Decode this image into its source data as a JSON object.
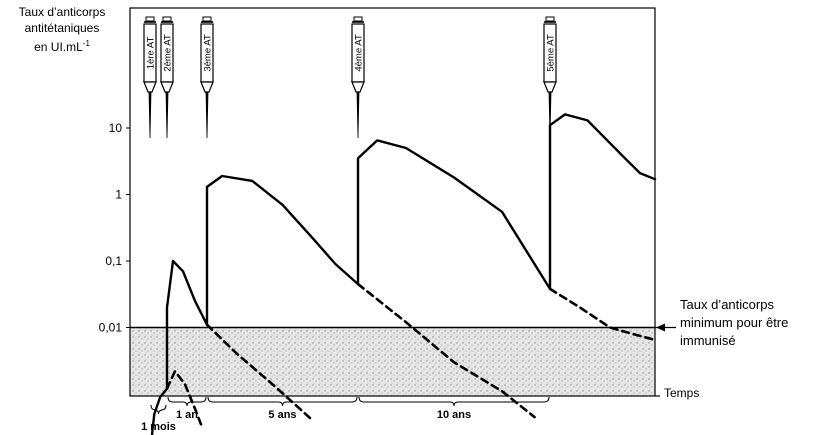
{
  "chart_data": {
    "type": "line",
    "ylabel_lines": [
      "Taux d’anticorps",
      "antitétaniques",
      "en UI.mL"
    ],
    "ylabel_exponent": "-1",
    "xlabel": "Temps",
    "yscale": "log",
    "y_ticks": [
      {
        "value": 10,
        "label": "10"
      },
      {
        "value": 1,
        "label": "1"
      },
      {
        "value": 0.1,
        "label": "0,1"
      },
      {
        "value": 0.01,
        "label": "0,01"
      }
    ],
    "ylim": [
      0.00013,
      80
    ],
    "threshold": {
      "value": 0.01,
      "label_lines": [
        "Taux d’anticorps",
        "minimum pour être",
        "immunisé"
      ]
    },
    "injections": [
      {
        "label": "1ère AT",
        "time": 0
      },
      {
        "label": "2ème AT",
        "time": 1
      },
      {
        "label": "3ème AT",
        "time": 2
      },
      {
        "label": "4ème AT",
        "time": 3
      },
      {
        "label": "5ème AT",
        "time": 4
      }
    ],
    "intervals": [
      {
        "label": "1 mois",
        "from": 0,
        "to": 1
      },
      {
        "label": "1 an",
        "from": 1,
        "to": 2
      },
      {
        "label": "5 ans",
        "from": 2,
        "to": 3
      },
      {
        "label": "10 ans",
        "from": 3,
        "to": 4
      }
    ],
    "series": [
      {
        "style": "solid",
        "points": [
          [
            0,
            0.00013
          ],
          [
            0.25,
            0.0005
          ],
          [
            0.6,
            0.0009
          ],
          [
            1,
            0.0012
          ],
          [
            1,
            0.02
          ],
          [
            1.15,
            0.1
          ],
          [
            1.4,
            0.07
          ],
          [
            1.7,
            0.025
          ],
          [
            2,
            0.011
          ],
          [
            2,
            1.3
          ],
          [
            2.1,
            1.9
          ],
          [
            2.3,
            1.6
          ],
          [
            2.5,
            0.7
          ],
          [
            2.7,
            0.22
          ],
          [
            2.85,
            0.09
          ],
          [
            3,
            0.045
          ],
          [
            3,
            3.5
          ],
          [
            3.1,
            6.5
          ],
          [
            3.25,
            5.0
          ],
          [
            3.5,
            1.8
          ],
          [
            3.75,
            0.55
          ],
          [
            4,
            0.038
          ],
          [
            4,
            11.0
          ],
          [
            4.1,
            16.0
          ],
          [
            4.25,
            13.0
          ],
          [
            4.5,
            3.5
          ],
          [
            4.6,
            2.1
          ],
          [
            4.7,
            1.7
          ]
        ]
      },
      {
        "style": "dashed",
        "points": [
          [
            1,
            0.0012
          ],
          [
            1.2,
            0.0022
          ],
          [
            1.45,
            0.0014
          ],
          [
            1.7,
            0.0006
          ],
          [
            1.85,
            0.00035
          ]
        ]
      },
      {
        "style": "dashed",
        "points": [
          [
            2,
            0.011
          ],
          [
            2.2,
            0.004
          ],
          [
            2.45,
            0.0013
          ],
          [
            2.7,
            0.0004
          ]
        ]
      },
      {
        "style": "dashed",
        "points": [
          [
            3,
            0.045
          ],
          [
            3.25,
            0.012
          ],
          [
            3.5,
            0.003
          ],
          [
            3.75,
            0.0011
          ],
          [
            3.92,
            0.00045
          ]
        ]
      },
      {
        "style": "dashed",
        "points": [
          [
            4,
            0.038
          ],
          [
            4.2,
            0.02
          ],
          [
            4.4,
            0.01
          ],
          [
            4.55,
            0.008
          ],
          [
            4.7,
            0.0065
          ]
        ]
      }
    ],
    "grid": false,
    "colors": {
      "line": "#000000",
      "shade": "#d9d9d9"
    }
  }
}
